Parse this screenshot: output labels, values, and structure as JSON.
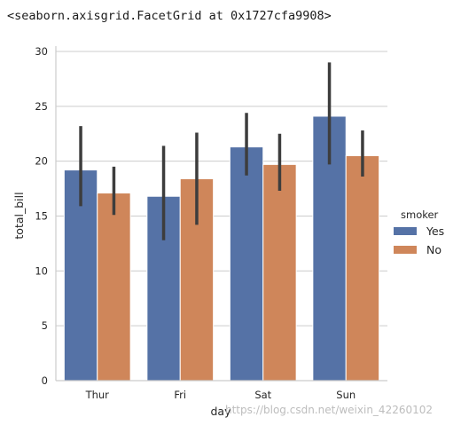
{
  "repr_text": "<seaborn.axisgrid.FacetGrid at 0x1727cfa9908>",
  "watermark": "https://blog.csdn.net/weixin_42260102",
  "colors": {
    "Yes": "#5572a6",
    "No": "#cf865a",
    "errorbar": "#3d3d3d",
    "grid": "#cccccc",
    "axis": "#cccccc"
  },
  "chart_data": {
    "type": "bar",
    "xlabel": "day",
    "ylabel": "total_bill",
    "ylim": [
      0,
      30
    ],
    "yticks": [
      0,
      5,
      10,
      15,
      20,
      25,
      30
    ],
    "grid": "horizontal",
    "legend": {
      "title": "smoker",
      "placement": "right",
      "entries": [
        "Yes",
        "No"
      ]
    },
    "categories": [
      "Thur",
      "Fri",
      "Sat",
      "Sun"
    ],
    "series": [
      {
        "name": "Yes",
        "values": [
          19.2,
          16.8,
          21.3,
          24.1
        ],
        "ci_low": [
          15.9,
          12.8,
          18.7,
          19.7
        ],
        "ci_high": [
          23.2,
          21.4,
          24.4,
          29.0
        ]
      },
      {
        "name": "No",
        "values": [
          17.1,
          18.4,
          19.7,
          20.5
        ],
        "ci_low": [
          15.1,
          14.2,
          17.3,
          18.6
        ],
        "ci_high": [
          19.5,
          22.6,
          22.5,
          22.8
        ]
      }
    ]
  }
}
